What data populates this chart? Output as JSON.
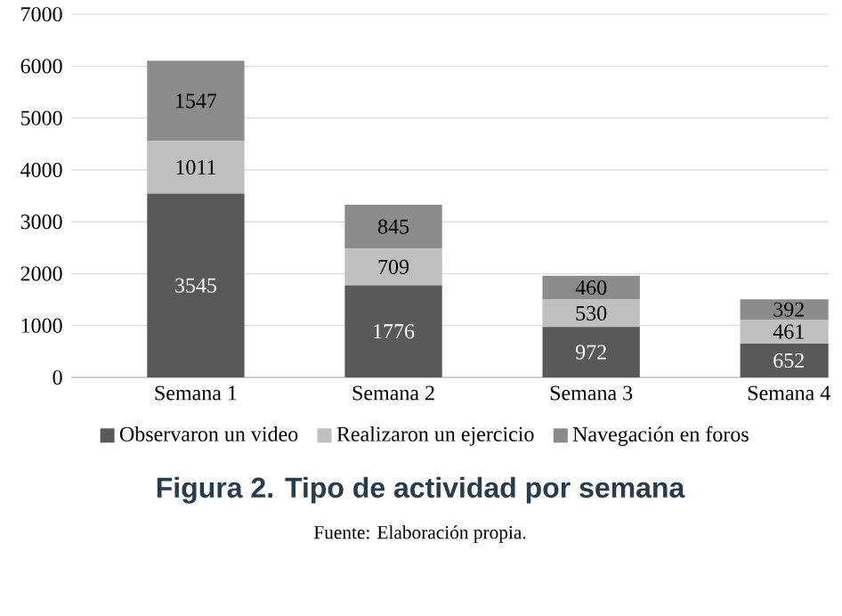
{
  "chart_data": {
    "type": "bar",
    "stacked": true,
    "title": "Figura 2. Tipo de actividad por semana",
    "annotations": [
      "Fuente: Elaboración propia."
    ],
    "categories": [
      "Semana 1",
      "Semana 2",
      "Semana 3",
      "Semana 4"
    ],
    "series": [
      {
        "name": "Observaron un video",
        "color": "#595959",
        "values": [
          3545,
          1776,
          972,
          652
        ]
      },
      {
        "name": "Realizaron un ejercicio",
        "color": "#bfbfbf",
        "values": [
          1011,
          709,
          530,
          461
        ]
      },
      {
        "name": "Navegación en foros",
        "color": "#8c8c8c",
        "values": [
          1547,
          845,
          460,
          392
        ]
      }
    ],
    "ylim": [
      0,
      7000
    ],
    "yticks": [
      0,
      1000,
      2000,
      3000,
      4000,
      5000,
      6000,
      7000
    ],
    "grid": "y",
    "legend": "bottom",
    "data_labels": true
  }
}
